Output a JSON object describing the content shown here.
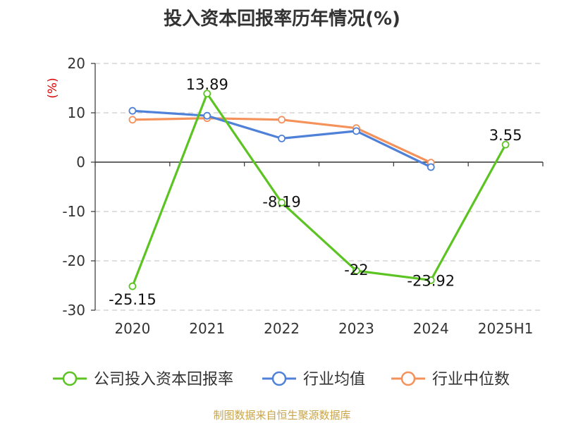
{
  "title": "投入资本回报率历年情况(%)",
  "source": "制图数据来自恒生聚源数据库",
  "chart_data": {
    "type": "line",
    "categories": [
      "2020",
      "2021",
      "2022",
      "2023",
      "2024",
      "2025H1"
    ],
    "ylabel": "(%)",
    "ylim": [
      -30,
      20
    ],
    "yticks": [
      20,
      10,
      0,
      -10,
      -20,
      -30
    ],
    "grid": true,
    "legend_position": "bottom",
    "series": [
      {
        "name": "公司投入资本回报率",
        "color": "#5cc422",
        "values": [
          -25.15,
          13.89,
          -8.19,
          -22,
          -23.92,
          3.55
        ],
        "labels": [
          "-25.15",
          "13.89",
          "-8.19",
          "-22",
          "-23.92",
          "3.55"
        ]
      },
      {
        "name": "行业均值",
        "color": "#4f81d8",
        "values": [
          10.4,
          9.4,
          4.8,
          6.3,
          -1.0,
          null
        ]
      },
      {
        "name": "行业中位数",
        "color": "#f5915a",
        "values": [
          8.6,
          8.9,
          8.6,
          6.9,
          -0.1,
          null
        ]
      }
    ]
  }
}
